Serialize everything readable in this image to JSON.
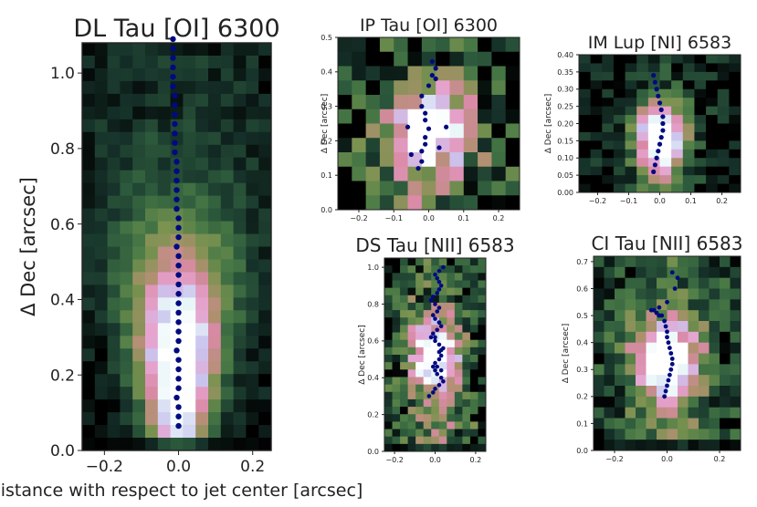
{
  "figure": {
    "shared_xlabel": "distance with respect to jet center [arcsec]",
    "colormap": [
      "#000000",
      "#16322a",
      "#2d5a3c",
      "#4a7a46",
      "#7a9250",
      "#b09070",
      "#d98aa6",
      "#e6a4cf",
      "#c9c4ee",
      "#e8f6f8",
      "#ffffff"
    ],
    "centroid_color": "#000a80"
  },
  "chart_data": [
    {
      "type": "heatmap",
      "name": "panel-dl-tau",
      "title": "DL Tau [OI] 6300",
      "xlabel": "",
      "ylabel": "Δ Dec [arcsec]",
      "xlim": [
        -0.26,
        0.25
      ],
      "ylim": [
        0.0,
        1.08
      ],
      "xticks": [
        -0.2,
        0.0,
        0.2
      ],
      "xtick_labels": [
        "−0.2",
        "0.0",
        "0.2"
      ],
      "yticks": [
        0.0,
        0.2,
        0.4,
        0.6,
        0.8,
        1.0
      ],
      "ytick_labels": [
        "0.0",
        "0.2",
        "0.4",
        "0.6",
        "0.8",
        "1.0"
      ],
      "grid_cols": 15,
      "grid_rows": 32,
      "image_model": {
        "y0": 0.0,
        "y1": 1.08,
        "peak_y": 0.22,
        "core": 0.32,
        "w0": 0.045,
        "w1": 0.16,
        "halo": 0.15,
        "noise": 0.12,
        "floor": 0.04
      },
      "centroid_x": [
        0.0,
        0.0,
        0.0,
        -0.005,
        0.0,
        0.0,
        0.0,
        0.0,
        -0.005,
        0.0,
        0.0,
        0.0,
        0.0,
        0.0,
        0.0,
        0.0,
        0.0,
        0.0,
        0.0,
        -0.005,
        0.0,
        0.0,
        0.0,
        -0.005,
        -0.005,
        -0.005,
        -0.005,
        -0.005,
        -0.005,
        -0.01,
        -0.01,
        -0.01,
        -0.01,
        -0.01,
        -0.01,
        -0.01,
        -0.015,
        -0.015,
        -0.015,
        -0.015,
        -0.015,
        -0.015,
        -0.02,
        -0.02,
        -0.02
      ],
      "centroid_y": [
        0.065,
        0.09,
        0.115,
        0.14,
        0.165,
        0.19,
        0.215,
        0.24,
        0.265,
        0.29,
        0.315,
        0.34,
        0.365,
        0.39,
        0.415,
        0.44,
        0.465,
        0.49,
        0.515,
        0.54,
        0.565,
        0.59,
        0.615,
        0.64,
        0.665,
        0.69,
        0.715,
        0.74,
        0.765,
        0.79,
        0.815,
        0.84,
        0.865,
        0.89,
        0.915,
        0.94,
        0.965,
        0.99,
        1.015,
        1.04,
        1.065,
        1.09,
        1.115,
        1.14,
        1.165
      ]
    },
    {
      "type": "heatmap",
      "name": "panel-ip-tau",
      "title": "IP Tau [OI] 6300",
      "xlabel": "",
      "ylabel": "Δ Dec [arcsec]",
      "xlim": [
        -0.26,
        0.26
      ],
      "ylim": [
        0.0,
        0.5
      ],
      "xticks": [
        -0.2,
        -0.1,
        0.0,
        0.1,
        0.2
      ],
      "xtick_labels": [
        "−0.2",
        "−0.1",
        "0.0",
        "0.1",
        "0.2"
      ],
      "yticks": [
        0.0,
        0.1,
        0.2,
        0.3,
        0.4,
        0.5
      ],
      "ytick_labels": [
        "0.0",
        "0.1",
        "0.2",
        "0.3",
        "0.4",
        "0.5"
      ],
      "grid_cols": 13,
      "grid_rows": 12,
      "image_model": {
        "y0": 0.0,
        "y1": 0.5,
        "peak_y": 0.23,
        "core": 0.12,
        "w0": 0.07,
        "w1": 0.07,
        "halo": 0.3,
        "noise": 0.55,
        "floor": 0.1
      },
      "centroid_x": [
        -0.03,
        -0.02,
        -0.02,
        -0.01,
        -0.01,
        0.0,
        -0.01,
        -0.01,
        -0.02,
        -0.02,
        0.0,
        0.01,
        0.02,
        0.05,
        -0.06,
        -0.05,
        0.03,
        0.02,
        0.01
      ],
      "centroid_y": [
        0.12,
        0.14,
        0.17,
        0.19,
        0.21,
        0.235,
        0.26,
        0.28,
        0.3,
        0.33,
        0.36,
        0.39,
        0.41,
        0.24,
        0.24,
        0.16,
        0.18,
        0.38,
        0.43
      ]
    },
    {
      "type": "heatmap",
      "name": "panel-im-lup",
      "title": "IM Lup [NI] 6583",
      "xlabel": "",
      "ylabel": "Δ Dec [arcsec]",
      "xlim": [
        -0.26,
        0.26
      ],
      "ylim": [
        0.0,
        0.4
      ],
      "xticks": [
        -0.2,
        -0.1,
        0.0,
        0.1,
        0.2
      ],
      "xtick_labels": [
        "−0.2",
        "−0.1",
        "0.0",
        "0.1",
        "0.2"
      ],
      "yticks": [
        0.0,
        0.05,
        0.1,
        0.15,
        0.2,
        0.25,
        0.3,
        0.35,
        0.4
      ],
      "ytick_labels": [
        "0.00",
        "0.05",
        "0.10",
        "0.15",
        "0.20",
        "0.25",
        "0.30",
        "0.35",
        "0.40"
      ],
      "grid_cols": 14,
      "grid_rows": 16,
      "image_model": {
        "y0": 0.0,
        "y1": 0.4,
        "peak_y": 0.15,
        "core": 0.1,
        "w0": 0.045,
        "w1": 0.07,
        "halo": 0.2,
        "noise": 0.25,
        "floor": 0.03
      },
      "centroid_x": [
        -0.02,
        -0.015,
        -0.01,
        -0.005,
        0.0,
        0.005,
        0.01,
        0.01,
        0.01,
        0.005,
        0.0,
        -0.005,
        -0.01,
        -0.015,
        -0.02
      ],
      "centroid_y": [
        0.06,
        0.08,
        0.1,
        0.12,
        0.14,
        0.16,
        0.18,
        0.2,
        0.22,
        0.24,
        0.26,
        0.28,
        0.3,
        0.32,
        0.34
      ]
    },
    {
      "type": "heatmap",
      "name": "panel-ds-tau",
      "title": "DS Tau [NII] 6583",
      "xlabel": "",
      "ylabel": "Δ Dec [arcsec]",
      "xlim": [
        -0.25,
        0.25
      ],
      "ylim": [
        0.0,
        1.05
      ],
      "xticks": [
        -0.2,
        0.0,
        0.2
      ],
      "xtick_labels": [
        "−0.2",
        "0.0",
        "0.2"
      ],
      "yticks": [
        0.0,
        0.2,
        0.4,
        0.6,
        0.8,
        1.0
      ],
      "ytick_labels": [
        "0.0",
        "0.2",
        "0.4",
        "0.6",
        "0.8",
        "1.0"
      ],
      "grid_cols": 13,
      "grid_rows": 26,
      "image_model": {
        "y0": 0.0,
        "y1": 1.05,
        "peak_y": 0.52,
        "core": 0.18,
        "w0": 0.06,
        "w1": 0.09,
        "halo": 0.35,
        "noise": 0.45,
        "floor": 0.12
      },
      "centroid_x": [
        -0.03,
        -0.01,
        0.0,
        0.02,
        0.04,
        0.03,
        0.01,
        0.0,
        -0.01,
        0.0,
        0.02,
        0.03,
        0.02,
        0.04,
        0.02,
        0.0,
        -0.02,
        -0.01,
        0.01,
        0.03,
        0.02,
        0.0,
        -0.01,
        0.01,
        0.02,
        0.0,
        -0.02,
        -0.01,
        0.01,
        0.02,
        0.03,
        0.02,
        0.01,
        0.0,
        0.02,
        0.04,
        0.03,
        0.01,
        0.0,
        0.02,
        0.03
      ],
      "centroid_y": [
        0.3,
        0.32,
        0.34,
        0.36,
        0.38,
        0.4,
        0.42,
        0.44,
        0.46,
        0.48,
        0.5,
        0.52,
        0.54,
        0.56,
        0.58,
        0.6,
        0.62,
        0.64,
        0.66,
        0.68,
        0.7,
        0.72,
        0.74,
        0.76,
        0.78,
        0.8,
        0.82,
        0.84,
        0.86,
        0.88,
        0.9,
        0.92,
        0.94,
        0.96,
        0.98,
        1.0,
        0.55,
        0.46,
        0.62,
        0.7,
        0.44
      ]
    },
    {
      "type": "heatmap",
      "name": "panel-ci-tau",
      "title": "CI Tau [NII] 6583",
      "xlabel": "",
      "ylabel": "Δ Dec [arcsec]",
      "xlim": [
        -0.28,
        0.28
      ],
      "ylim": [
        0.0,
        0.72
      ],
      "xticks": [
        -0.2,
        0.0,
        0.2
      ],
      "xtick_labels": [
        "−0.2",
        "0.0",
        "0.2"
      ],
      "yticks": [
        0.0,
        0.1,
        0.2,
        0.3,
        0.4,
        0.5,
        0.6,
        0.7
      ],
      "ytick_labels": [
        "0.0",
        "0.1",
        "0.2",
        "0.3",
        "0.4",
        "0.5",
        "0.6",
        "0.7"
      ],
      "grid_cols": 14,
      "grid_rows": 18,
      "image_model": {
        "y0": 0.0,
        "y1": 0.72,
        "peak_y": 0.34,
        "core": 0.14,
        "w0": 0.07,
        "w1": 0.1,
        "halo": 0.3,
        "noise": 0.35,
        "floor": 0.1
      },
      "centroid_x": [
        -0.01,
        -0.005,
        0.0,
        0.005,
        0.01,
        0.015,
        0.02,
        0.02,
        0.015,
        0.01,
        0.005,
        0.0,
        0.0,
        -0.005,
        -0.01,
        -0.02,
        -0.03,
        -0.04,
        -0.05,
        -0.06,
        0.0,
        0.03,
        0.04,
        0.02,
        -0.03
      ],
      "centroid_y": [
        0.2,
        0.22,
        0.24,
        0.26,
        0.28,
        0.3,
        0.32,
        0.34,
        0.36,
        0.38,
        0.4,
        0.42,
        0.44,
        0.46,
        0.48,
        0.5,
        0.5,
        0.51,
        0.52,
        0.52,
        0.55,
        0.6,
        0.64,
        0.66,
        0.53
      ]
    }
  ]
}
